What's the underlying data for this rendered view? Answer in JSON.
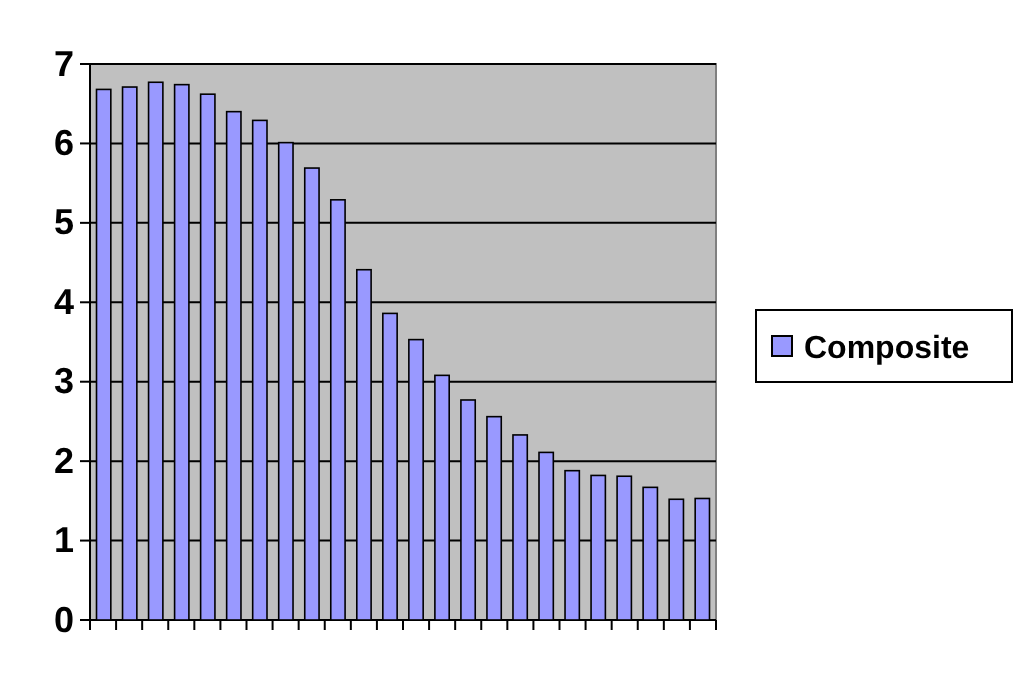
{
  "chart_data": {
    "type": "bar",
    "categories": [
      null,
      null,
      null,
      null,
      null,
      null,
      null,
      null,
      null,
      null,
      null,
      null,
      null,
      null,
      null,
      null,
      null,
      null,
      null,
      null,
      null,
      null,
      null,
      null
    ],
    "series": [
      {
        "name": "Composite",
        "color": "#9999ff",
        "values": [
          6.68,
          6.71,
          6.77,
          6.74,
          6.62,
          6.4,
          6.29,
          6.01,
          5.69,
          5.29,
          4.41,
          3.86,
          3.53,
          3.08,
          2.77,
          2.56,
          2.33,
          2.11,
          1.88,
          1.82,
          1.81,
          1.67,
          1.52,
          1.53
        ]
      }
    ],
    "ylim": [
      0,
      7
    ],
    "yticks": [
      0,
      1,
      2,
      3,
      4,
      5,
      6,
      7
    ],
    "grid": "y",
    "legend": "right"
  }
}
